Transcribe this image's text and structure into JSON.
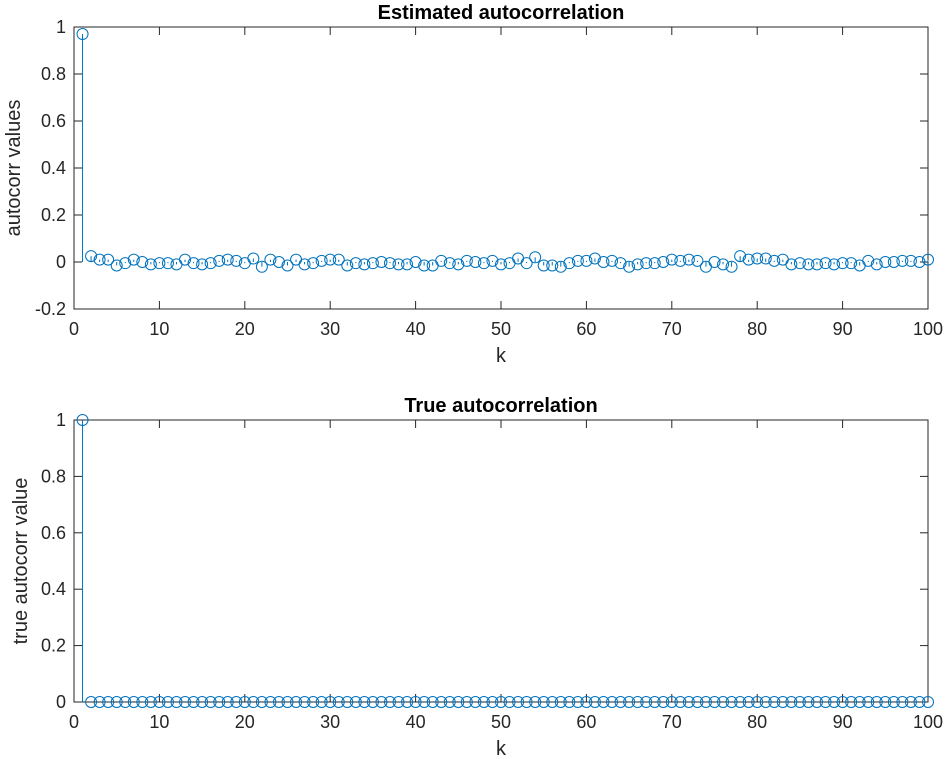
{
  "chart_data": [
    {
      "type": "stem",
      "title": "Estimated autocorrelation",
      "xlabel": "k",
      "ylabel": "autocorr values",
      "xlim": [
        0,
        100
      ],
      "ylim": [
        -0.2,
        1
      ],
      "xticks": [
        "0",
        "10",
        "20",
        "30",
        "40",
        "50",
        "60",
        "70",
        "80",
        "90",
        "100"
      ],
      "yticks": [
        "-0.2",
        "0",
        "0.2",
        "0.4",
        "0.6",
        "0.8",
        "1"
      ],
      "grid": false,
      "marker": "circle",
      "color": "#0072BD",
      "x": [
        1,
        2,
        3,
        4,
        5,
        6,
        7,
        8,
        9,
        10,
        11,
        12,
        13,
        14,
        15,
        16,
        17,
        18,
        19,
        20,
        21,
        22,
        23,
        24,
        25,
        26,
        27,
        28,
        29,
        30,
        31,
        32,
        33,
        34,
        35,
        36,
        37,
        38,
        39,
        40,
        41,
        42,
        43,
        44,
        45,
        46,
        47,
        48,
        49,
        50,
        51,
        52,
        53,
        54,
        55,
        56,
        57,
        58,
        59,
        60,
        61,
        62,
        63,
        64,
        65,
        66,
        67,
        68,
        69,
        70,
        71,
        72,
        73,
        74,
        75,
        76,
        77,
        78,
        79,
        80,
        81,
        82,
        83,
        84,
        85,
        86,
        87,
        88,
        89,
        90,
        91,
        92,
        93,
        94,
        95,
        96,
        97,
        98,
        99,
        100
      ],
      "values": [
        0.97,
        0.025,
        0.01,
        0.01,
        -0.015,
        -0.005,
        0.01,
        0.0,
        -0.01,
        -0.005,
        -0.005,
        -0.01,
        0.01,
        -0.005,
        -0.01,
        -0.005,
        0.005,
        0.01,
        0.005,
        -0.005,
        0.015,
        -0.02,
        0.01,
        0.0,
        -0.015,
        0.01,
        -0.01,
        -0.005,
        0.005,
        0.01,
        0.01,
        -0.015,
        -0.005,
        -0.01,
        -0.005,
        0.0,
        -0.005,
        -0.01,
        -0.01,
        0.0,
        -0.015,
        -0.015,
        0.005,
        -0.005,
        -0.01,
        0.005,
        0.0,
        -0.005,
        0.005,
        -0.01,
        -0.005,
        0.015,
        -0.005,
        0.02,
        -0.015,
        -0.015,
        -0.02,
        -0.005,
        0.005,
        0.005,
        0.015,
        0.0,
        0.005,
        -0.005,
        -0.02,
        -0.01,
        -0.005,
        -0.005,
        0.0,
        0.01,
        0.005,
        0.01,
        0.005,
        -0.02,
        0.0,
        -0.01,
        -0.02,
        0.025,
        0.01,
        0.015,
        0.015,
        0.005,
        0.01,
        -0.01,
        -0.005,
        -0.01,
        -0.01,
        -0.005,
        -0.01,
        -0.005,
        -0.005,
        -0.015,
        0.005,
        -0.01,
        0.0,
        0.0,
        0.005,
        0.005,
        0.0,
        0.01
      ]
    },
    {
      "type": "stem",
      "title": "True autocorrelation",
      "xlabel": "k",
      "ylabel": "true autocorr value",
      "xlim": [
        0,
        100
      ],
      "ylim": [
        0,
        1
      ],
      "xticks": [
        "0",
        "10",
        "20",
        "30",
        "40",
        "50",
        "60",
        "70",
        "80",
        "90",
        "100"
      ],
      "yticks": [
        "0",
        "0.2",
        "0.4",
        "0.6",
        "0.8",
        "1"
      ],
      "grid": false,
      "marker": "circle",
      "color": "#0072BD",
      "x": [
        1,
        2,
        3,
        4,
        5,
        6,
        7,
        8,
        9,
        10,
        11,
        12,
        13,
        14,
        15,
        16,
        17,
        18,
        19,
        20,
        21,
        22,
        23,
        24,
        25,
        26,
        27,
        28,
        29,
        30,
        31,
        32,
        33,
        34,
        35,
        36,
        37,
        38,
        39,
        40,
        41,
        42,
        43,
        44,
        45,
        46,
        47,
        48,
        49,
        50,
        51,
        52,
        53,
        54,
        55,
        56,
        57,
        58,
        59,
        60,
        61,
        62,
        63,
        64,
        65,
        66,
        67,
        68,
        69,
        70,
        71,
        72,
        73,
        74,
        75,
        76,
        77,
        78,
        79,
        80,
        81,
        82,
        83,
        84,
        85,
        86,
        87,
        88,
        89,
        90,
        91,
        92,
        93,
        94,
        95,
        96,
        97,
        98,
        99,
        100
      ],
      "values": [
        1,
        0,
        0,
        0,
        0,
        0,
        0,
        0,
        0,
        0,
        0,
        0,
        0,
        0,
        0,
        0,
        0,
        0,
        0,
        0,
        0,
        0,
        0,
        0,
        0,
        0,
        0,
        0,
        0,
        0,
        0,
        0,
        0,
        0,
        0,
        0,
        0,
        0,
        0,
        0,
        0,
        0,
        0,
        0,
        0,
        0,
        0,
        0,
        0,
        0,
        0,
        0,
        0,
        0,
        0,
        0,
        0,
        0,
        0,
        0,
        0,
        0,
        0,
        0,
        0,
        0,
        0,
        0,
        0,
        0,
        0,
        0,
        0,
        0,
        0,
        0,
        0,
        0,
        0,
        0,
        0,
        0,
        0,
        0,
        0,
        0,
        0,
        0,
        0,
        0,
        0,
        0,
        0,
        0,
        0,
        0,
        0,
        0,
        0,
        0
      ]
    }
  ]
}
